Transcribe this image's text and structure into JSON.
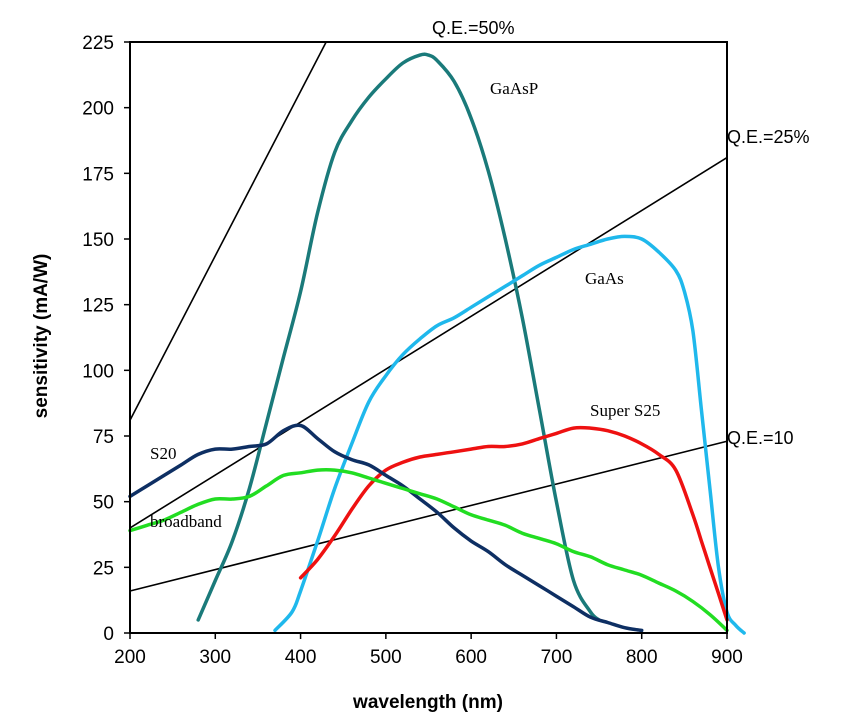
{
  "chart_data": {
    "type": "line",
    "title": "",
    "xlabel": "wavelength (nm)",
    "ylabel": "sensitivity (mA/W)",
    "xlim": [
      200,
      900
    ],
    "ylim": [
      0,
      225
    ],
    "x_ticks": [
      200,
      300,
      400,
      500,
      600,
      700,
      800,
      900
    ],
    "y_ticks": [
      0,
      25,
      50,
      75,
      100,
      125,
      150,
      175,
      200,
      225
    ],
    "grid": false,
    "legend": "none (curves labeled directly)",
    "series": [
      {
        "name": "GaAsP",
        "color": "#1a7a7a",
        "x": [
          280,
          300,
          320,
          340,
          360,
          380,
          400,
          420,
          440,
          460,
          480,
          500,
          520,
          540,
          550,
          560,
          580,
          600,
          620,
          640,
          660,
          680,
          700,
          720,
          740,
          750
        ],
        "y": [
          5,
          20,
          35,
          55,
          80,
          105,
          130,
          160,
          183,
          195,
          204,
          211,
          217,
          220,
          220,
          218,
          210,
          196,
          176,
          150,
          120,
          85,
          50,
          20,
          8,
          5
        ]
      },
      {
        "name": "GaAs",
        "color": "#1fb8ec",
        "x": [
          370,
          390,
          400,
          420,
          440,
          460,
          480,
          500,
          520,
          540,
          560,
          580,
          600,
          620,
          640,
          660,
          680,
          700,
          720,
          740,
          760,
          780,
          800,
          820,
          840,
          850,
          860,
          870,
          880,
          890,
          900,
          910,
          920
        ],
        "y": [
          1,
          8,
          16,
          35,
          55,
          72,
          88,
          98,
          106,
          112,
          117,
          120,
          124,
          128,
          132,
          136,
          140,
          143,
          146,
          148,
          150,
          151,
          150,
          145,
          138,
          130,
          115,
          85,
          55,
          25,
          8,
          3,
          0
        ]
      },
      {
        "name": "Super S25",
        "color": "#ee1111",
        "x": [
          400,
          420,
          440,
          460,
          480,
          500,
          520,
          540,
          560,
          580,
          600,
          620,
          640,
          660,
          680,
          700,
          720,
          740,
          760,
          780,
          800,
          820,
          840,
          860,
          870,
          880,
          890,
          900
        ],
        "y": [
          21,
          28,
          37,
          47,
          56,
          62,
          65,
          67,
          68,
          69,
          70,
          71,
          71,
          72,
          74,
          76,
          78,
          78,
          77,
          75,
          72,
          68,
          62,
          45,
          35,
          25,
          15,
          5
        ]
      },
      {
        "name": "S20",
        "color": "#0e2f63",
        "x": [
          200,
          220,
          240,
          260,
          280,
          300,
          320,
          340,
          360,
          380,
          400,
          420,
          440,
          460,
          480,
          500,
          520,
          540,
          560,
          580,
          600,
          620,
          640,
          660,
          680,
          700,
          720,
          740,
          760,
          780,
          800
        ],
        "y": [
          52,
          56,
          60,
          64,
          68,
          70,
          70,
          71,
          72,
          77,
          79,
          74,
          69,
          66,
          64,
          60,
          56,
          51,
          46,
          40,
          35,
          31,
          26,
          22,
          18,
          14,
          10,
          6,
          4,
          2,
          1
        ]
      },
      {
        "name": "broadband",
        "color": "#22dd22",
        "x": [
          200,
          220,
          240,
          260,
          280,
          300,
          320,
          340,
          360,
          380,
          400,
          420,
          440,
          460,
          480,
          500,
          520,
          540,
          560,
          580,
          600,
          620,
          640,
          660,
          680,
          700,
          720,
          740,
          760,
          780,
          800,
          820,
          840,
          860,
          880,
          900
        ],
        "y": [
          39,
          41,
          43,
          46,
          49,
          51,
          51,
          52,
          56,
          60,
          61,
          62,
          62,
          61,
          59,
          57,
          55,
          53,
          51,
          48,
          45,
          43,
          41,
          38,
          36,
          34,
          31,
          29,
          26,
          24,
          22,
          19,
          16,
          12,
          7,
          1
        ]
      }
    ],
    "reference_lines": [
      {
        "name": "Q.E.=50%",
        "x": [
          200,
          430
        ],
        "y": [
          81,
          225
        ]
      },
      {
        "name": "Q.E.=25%",
        "x": [
          200,
          900
        ],
        "y": [
          40,
          181
        ]
      },
      {
        "name": "Q.E.=10",
        "x": [
          200,
          900
        ],
        "y": [
          16,
          73
        ]
      }
    ]
  },
  "colors": {
    "axis": "#000000",
    "reference_line": "#000000"
  }
}
